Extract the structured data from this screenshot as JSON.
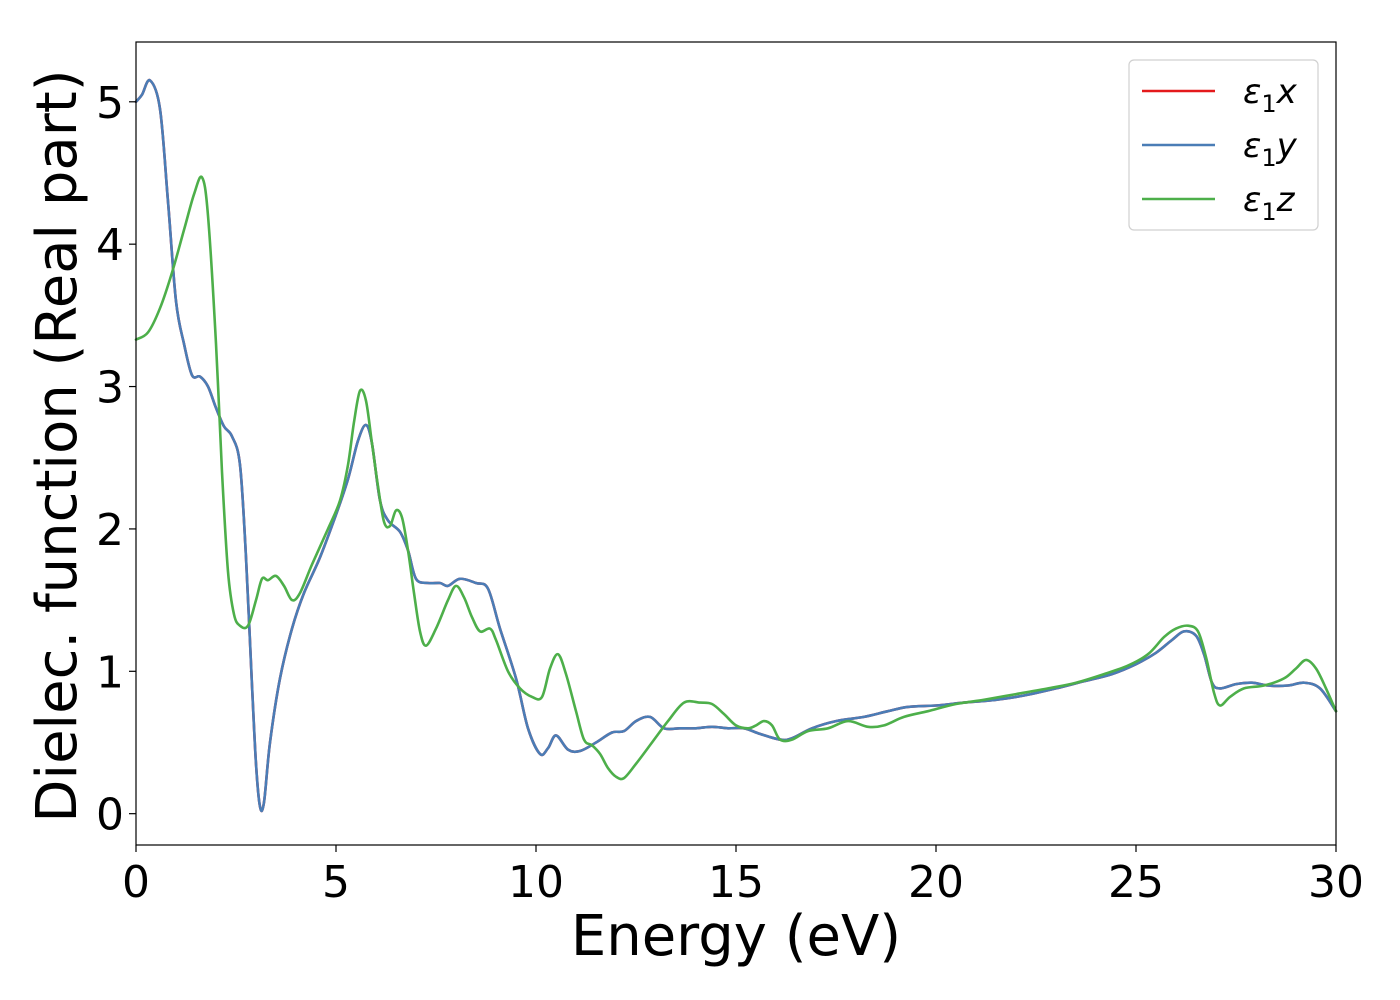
{
  "chart_data": {
    "type": "line",
    "title": "",
    "xlabel": "Energy (eV)",
    "ylabel": "Dielec. function (Real part)",
    "xlim": [
      0,
      30
    ],
    "ylim": [
      -0.22,
      5.42
    ],
    "xticks": [
      0,
      5,
      10,
      15,
      20,
      25,
      30
    ],
    "yticks": [
      0,
      1,
      2,
      3,
      4,
      5
    ],
    "grid": false,
    "legend_position": "top-right",
    "series": [
      {
        "name": "ε1x",
        "legend_main": "ε",
        "legend_sub": "1",
        "legend_axis": "x",
        "color": "#e41a1c",
        "points": [
          [
            0,
            5.0
          ],
          [
            0.15,
            5.05
          ],
          [
            0.35,
            5.15
          ],
          [
            0.6,
            4.95
          ],
          [
            0.8,
            4.3
          ],
          [
            1.0,
            3.6
          ],
          [
            1.2,
            3.3
          ],
          [
            1.4,
            3.08
          ],
          [
            1.6,
            3.07
          ],
          [
            1.8,
            3.0
          ],
          [
            2.0,
            2.85
          ],
          [
            2.2,
            2.72
          ],
          [
            2.4,
            2.65
          ],
          [
            2.6,
            2.45
          ],
          [
            2.75,
            1.8
          ],
          [
            2.9,
            0.9
          ],
          [
            3.0,
            0.35
          ],
          [
            3.1,
            0.05
          ],
          [
            3.2,
            0.08
          ],
          [
            3.35,
            0.5
          ],
          [
            3.6,
            0.95
          ],
          [
            3.9,
            1.3
          ],
          [
            4.2,
            1.55
          ],
          [
            4.6,
            1.8
          ],
          [
            5.0,
            2.1
          ],
          [
            5.3,
            2.35
          ],
          [
            5.55,
            2.62
          ],
          [
            5.75,
            2.73
          ],
          [
            5.9,
            2.6
          ],
          [
            6.1,
            2.2
          ],
          [
            6.3,
            2.06
          ],
          [
            6.6,
            1.98
          ],
          [
            6.8,
            1.85
          ],
          [
            7.0,
            1.65
          ],
          [
            7.3,
            1.62
          ],
          [
            7.6,
            1.62
          ],
          [
            7.8,
            1.6
          ],
          [
            8.1,
            1.65
          ],
          [
            8.5,
            1.62
          ],
          [
            8.8,
            1.58
          ],
          [
            9.1,
            1.3
          ],
          [
            9.5,
            0.95
          ],
          [
            9.8,
            0.6
          ],
          [
            10.1,
            0.42
          ],
          [
            10.3,
            0.46
          ],
          [
            10.5,
            0.55
          ],
          [
            10.8,
            0.45
          ],
          [
            11.1,
            0.44
          ],
          [
            11.5,
            0.5
          ],
          [
            11.9,
            0.57
          ],
          [
            12.2,
            0.58
          ],
          [
            12.5,
            0.65
          ],
          [
            12.85,
            0.68
          ],
          [
            13.2,
            0.6
          ],
          [
            13.6,
            0.6
          ],
          [
            14.0,
            0.6
          ],
          [
            14.4,
            0.61
          ],
          [
            14.8,
            0.6
          ],
          [
            15.2,
            0.6
          ],
          [
            15.6,
            0.56
          ],
          [
            16.1,
            0.52
          ],
          [
            16.4,
            0.53
          ],
          [
            16.9,
            0.6
          ],
          [
            17.5,
            0.65
          ],
          [
            18.2,
            0.68
          ],
          [
            18.8,
            0.72
          ],
          [
            19.3,
            0.75
          ],
          [
            20.0,
            0.76
          ],
          [
            20.7,
            0.78
          ],
          [
            21.5,
            0.8
          ],
          [
            22.2,
            0.83
          ],
          [
            23.0,
            0.88
          ],
          [
            23.7,
            0.93
          ],
          [
            24.4,
            0.98
          ],
          [
            25.0,
            1.05
          ],
          [
            25.5,
            1.13
          ],
          [
            25.9,
            1.22
          ],
          [
            26.2,
            1.28
          ],
          [
            26.5,
            1.25
          ],
          [
            26.7,
            1.12
          ],
          [
            26.9,
            0.92
          ],
          [
            27.1,
            0.88
          ],
          [
            27.5,
            0.91
          ],
          [
            27.9,
            0.92
          ],
          [
            28.3,
            0.9
          ],
          [
            28.8,
            0.9
          ],
          [
            29.2,
            0.92
          ],
          [
            29.6,
            0.88
          ],
          [
            30.0,
            0.72
          ]
        ]
      },
      {
        "name": "ε1y",
        "legend_main": "ε",
        "legend_sub": "1",
        "legend_axis": "y",
        "color": "#4a7db6",
        "points": [
          [
            0,
            5.0
          ],
          [
            0.15,
            5.05
          ],
          [
            0.35,
            5.15
          ],
          [
            0.6,
            4.95
          ],
          [
            0.8,
            4.3
          ],
          [
            1.0,
            3.6
          ],
          [
            1.2,
            3.3
          ],
          [
            1.4,
            3.08
          ],
          [
            1.6,
            3.07
          ],
          [
            1.8,
            3.0
          ],
          [
            2.0,
            2.85
          ],
          [
            2.2,
            2.72
          ],
          [
            2.4,
            2.65
          ],
          [
            2.6,
            2.45
          ],
          [
            2.75,
            1.8
          ],
          [
            2.9,
            0.9
          ],
          [
            3.0,
            0.35
          ],
          [
            3.1,
            0.05
          ],
          [
            3.2,
            0.08
          ],
          [
            3.35,
            0.5
          ],
          [
            3.6,
            0.95
          ],
          [
            3.9,
            1.3
          ],
          [
            4.2,
            1.55
          ],
          [
            4.6,
            1.8
          ],
          [
            5.0,
            2.1
          ],
          [
            5.3,
            2.35
          ],
          [
            5.55,
            2.62
          ],
          [
            5.75,
            2.73
          ],
          [
            5.9,
            2.6
          ],
          [
            6.1,
            2.2
          ],
          [
            6.3,
            2.06
          ],
          [
            6.6,
            1.98
          ],
          [
            6.8,
            1.85
          ],
          [
            7.0,
            1.65
          ],
          [
            7.3,
            1.62
          ],
          [
            7.6,
            1.62
          ],
          [
            7.8,
            1.6
          ],
          [
            8.1,
            1.65
          ],
          [
            8.5,
            1.62
          ],
          [
            8.8,
            1.58
          ],
          [
            9.1,
            1.3
          ],
          [
            9.5,
            0.95
          ],
          [
            9.8,
            0.6
          ],
          [
            10.1,
            0.42
          ],
          [
            10.3,
            0.46
          ],
          [
            10.5,
            0.55
          ],
          [
            10.8,
            0.45
          ],
          [
            11.1,
            0.44
          ],
          [
            11.5,
            0.5
          ],
          [
            11.9,
            0.57
          ],
          [
            12.2,
            0.58
          ],
          [
            12.5,
            0.65
          ],
          [
            12.85,
            0.68
          ],
          [
            13.2,
            0.6
          ],
          [
            13.6,
            0.6
          ],
          [
            14.0,
            0.6
          ],
          [
            14.4,
            0.61
          ],
          [
            14.8,
            0.6
          ],
          [
            15.2,
            0.6
          ],
          [
            15.6,
            0.56
          ],
          [
            16.1,
            0.52
          ],
          [
            16.4,
            0.53
          ],
          [
            16.9,
            0.6
          ],
          [
            17.5,
            0.65
          ],
          [
            18.2,
            0.68
          ],
          [
            18.8,
            0.72
          ],
          [
            19.3,
            0.75
          ],
          [
            20.0,
            0.76
          ],
          [
            20.7,
            0.78
          ],
          [
            21.5,
            0.8
          ],
          [
            22.2,
            0.83
          ],
          [
            23.0,
            0.88
          ],
          [
            23.7,
            0.93
          ],
          [
            24.4,
            0.98
          ],
          [
            25.0,
            1.05
          ],
          [
            25.5,
            1.13
          ],
          [
            25.9,
            1.22
          ],
          [
            26.2,
            1.28
          ],
          [
            26.5,
            1.25
          ],
          [
            26.7,
            1.12
          ],
          [
            26.9,
            0.92
          ],
          [
            27.1,
            0.88
          ],
          [
            27.5,
            0.91
          ],
          [
            27.9,
            0.92
          ],
          [
            28.3,
            0.9
          ],
          [
            28.8,
            0.9
          ],
          [
            29.2,
            0.92
          ],
          [
            29.6,
            0.88
          ],
          [
            30.0,
            0.72
          ]
        ]
      },
      {
        "name": "ε1z",
        "legend_main": "ε",
        "legend_sub": "1",
        "legend_axis": "z",
        "color": "#4daf4a",
        "points": [
          [
            0,
            3.33
          ],
          [
            0.3,
            3.38
          ],
          [
            0.6,
            3.55
          ],
          [
            0.9,
            3.8
          ],
          [
            1.2,
            4.1
          ],
          [
            1.45,
            4.35
          ],
          [
            1.65,
            4.47
          ],
          [
            1.8,
            4.2
          ],
          [
            2.0,
            3.3
          ],
          [
            2.15,
            2.4
          ],
          [
            2.3,
            1.7
          ],
          [
            2.45,
            1.4
          ],
          [
            2.6,
            1.32
          ],
          [
            2.8,
            1.32
          ],
          [
            3.0,
            1.5
          ],
          [
            3.15,
            1.65
          ],
          [
            3.3,
            1.64
          ],
          [
            3.5,
            1.67
          ],
          [
            3.7,
            1.6
          ],
          [
            3.9,
            1.5
          ],
          [
            4.1,
            1.55
          ],
          [
            4.4,
            1.75
          ],
          [
            4.8,
            2.0
          ],
          [
            5.1,
            2.2
          ],
          [
            5.3,
            2.45
          ],
          [
            5.45,
            2.75
          ],
          [
            5.6,
            2.97
          ],
          [
            5.75,
            2.9
          ],
          [
            5.9,
            2.6
          ],
          [
            6.05,
            2.3
          ],
          [
            6.2,
            2.05
          ],
          [
            6.35,
            2.02
          ],
          [
            6.5,
            2.13
          ],
          [
            6.65,
            2.08
          ],
          [
            6.8,
            1.85
          ],
          [
            6.95,
            1.55
          ],
          [
            7.1,
            1.28
          ],
          [
            7.25,
            1.18
          ],
          [
            7.5,
            1.3
          ],
          [
            7.8,
            1.5
          ],
          [
            8.0,
            1.6
          ],
          [
            8.2,
            1.52
          ],
          [
            8.4,
            1.38
          ],
          [
            8.6,
            1.28
          ],
          [
            8.85,
            1.3
          ],
          [
            9.0,
            1.22
          ],
          [
            9.3,
            1.0
          ],
          [
            9.6,
            0.88
          ],
          [
            9.9,
            0.82
          ],
          [
            10.15,
            0.82
          ],
          [
            10.35,
            1.02
          ],
          [
            10.55,
            1.12
          ],
          [
            10.75,
            0.98
          ],
          [
            11.0,
            0.72
          ],
          [
            11.2,
            0.52
          ],
          [
            11.4,
            0.48
          ],
          [
            11.6,
            0.42
          ],
          [
            11.8,
            0.32
          ],
          [
            12.0,
            0.26
          ],
          [
            12.2,
            0.25
          ],
          [
            12.5,
            0.35
          ],
          [
            12.9,
            0.5
          ],
          [
            13.3,
            0.65
          ],
          [
            13.7,
            0.78
          ],
          [
            14.1,
            0.78
          ],
          [
            14.4,
            0.77
          ],
          [
            14.7,
            0.7
          ],
          [
            15.0,
            0.62
          ],
          [
            15.3,
            0.6
          ],
          [
            15.5,
            0.62
          ],
          [
            15.7,
            0.65
          ],
          [
            15.9,
            0.62
          ],
          [
            16.1,
            0.52
          ],
          [
            16.4,
            0.52
          ],
          [
            16.8,
            0.58
          ],
          [
            17.3,
            0.6
          ],
          [
            17.8,
            0.65
          ],
          [
            18.3,
            0.61
          ],
          [
            18.7,
            0.62
          ],
          [
            19.2,
            0.68
          ],
          [
            19.8,
            0.72
          ],
          [
            20.5,
            0.77
          ],
          [
            21.2,
            0.8
          ],
          [
            22.0,
            0.84
          ],
          [
            22.8,
            0.88
          ],
          [
            23.5,
            0.92
          ],
          [
            24.2,
            0.98
          ],
          [
            24.8,
            1.04
          ],
          [
            25.3,
            1.12
          ],
          [
            25.7,
            1.24
          ],
          [
            26.0,
            1.3
          ],
          [
            26.3,
            1.32
          ],
          [
            26.55,
            1.28
          ],
          [
            26.75,
            1.1
          ],
          [
            26.95,
            0.85
          ],
          [
            27.1,
            0.76
          ],
          [
            27.35,
            0.82
          ],
          [
            27.7,
            0.88
          ],
          [
            28.2,
            0.9
          ],
          [
            28.7,
            0.95
          ],
          [
            29.0,
            1.02
          ],
          [
            29.25,
            1.08
          ],
          [
            29.5,
            1.02
          ],
          [
            29.75,
            0.88
          ],
          [
            30.0,
            0.72
          ]
        ]
      }
    ]
  }
}
